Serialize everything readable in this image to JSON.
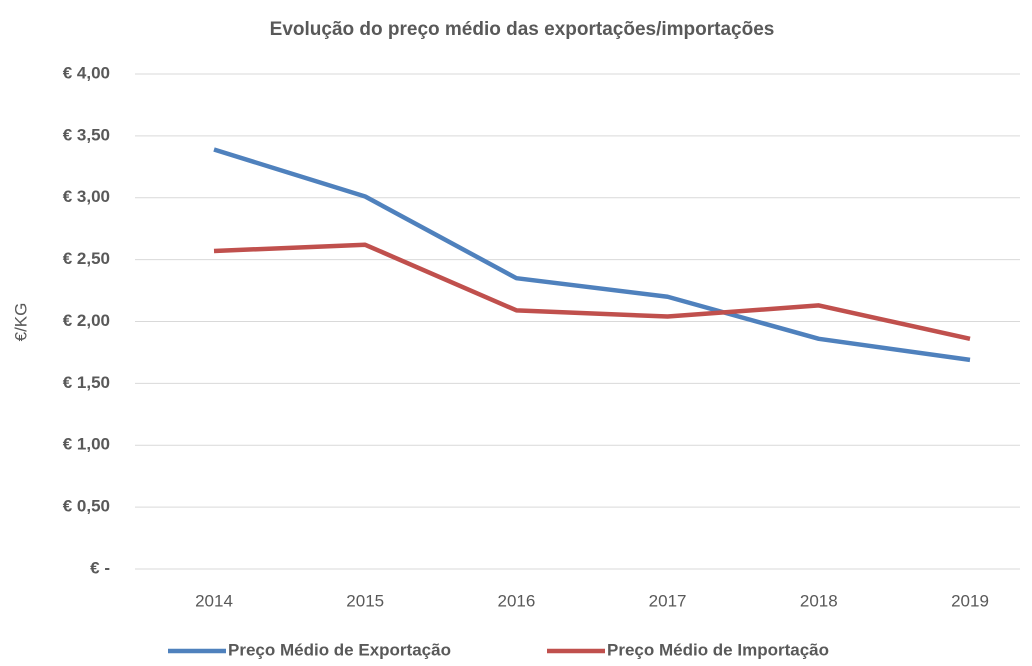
{
  "chart_data": {
    "type": "line",
    "title": "Evolução do preço médio das exportações/importações",
    "y_label": "€/KG",
    "categories": [
      "2014",
      "2015",
      "2016",
      "2017",
      "2018",
      "2019"
    ],
    "series": [
      {
        "name": "Preço Médio de Exportação",
        "color": "#4f81bd",
        "values": [
          3.39,
          3.01,
          2.35,
          2.2,
          1.86,
          1.69
        ]
      },
      {
        "name": "Preço Médio de Importação",
        "color": "#c0504d",
        "values": [
          2.57,
          2.62,
          2.09,
          2.04,
          2.13,
          1.86
        ]
      }
    ],
    "ylim": [
      0,
      4
    ],
    "yticks": [
      {
        "value": 0,
        "label": "€ -"
      },
      {
        "value": 0.5,
        "label": "€ 0,50"
      },
      {
        "value": 1,
        "label": "€ 1,00"
      },
      {
        "value": 1.5,
        "label": "€ 1,50"
      },
      {
        "value": 2,
        "label": "€ 2,00"
      },
      {
        "value": 2.5,
        "label": "€ 2,50"
      },
      {
        "value": 3,
        "label": "€ 3,00"
      },
      {
        "value": 3.5,
        "label": "€ 3,50"
      },
      {
        "value": 4,
        "label": "€ 4,00"
      }
    ],
    "grid": true,
    "legend": "bottom"
  }
}
